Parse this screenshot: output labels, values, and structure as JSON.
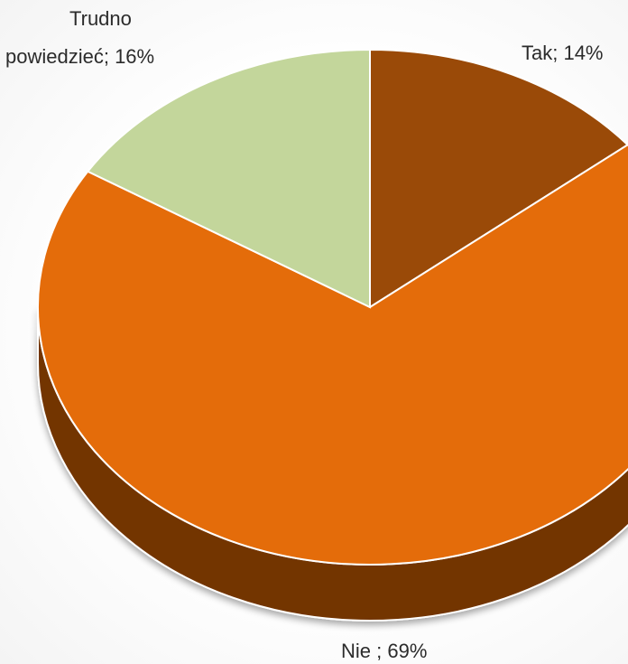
{
  "chart_data": {
    "type": "pie",
    "style": "3d-tilted",
    "legend": "none",
    "slices": [
      {
        "label": "Tak; 14%",
        "value": 14,
        "color": "#9A4A08"
      },
      {
        "label": "Nie ; 69%",
        "value": 69,
        "color": "#E46C0A"
      },
      {
        "label": "Trudno powiedzieć; 16%",
        "label_lines": [
          "Trudno",
          "powiedzieć; 16%"
        ],
        "value": 16,
        "color": "#C3D69B"
      }
    ],
    "side_color": "#733505",
    "edge_color": "#ffffff"
  }
}
